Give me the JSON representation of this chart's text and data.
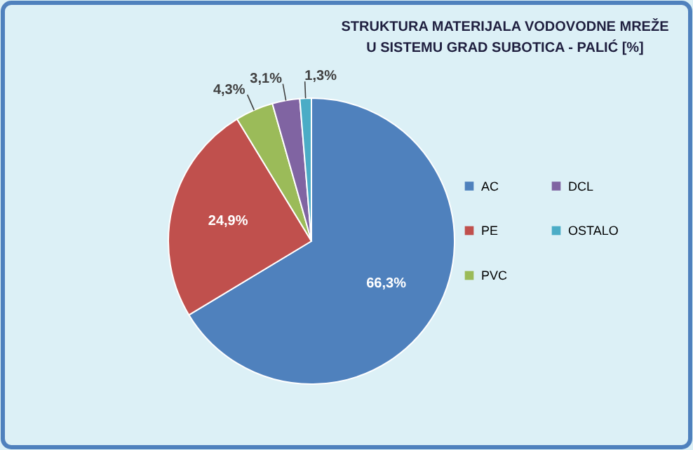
{
  "chart_data": {
    "type": "pie",
    "title": "STRUKTURA MATERIJALA VODOVODNE MREŽE U SISTEMU GRAD SUBOTICA - PALIĆ [%]",
    "categories": [
      "AC",
      "PE",
      "PVC",
      "DCL",
      "OSTALO"
    ],
    "values": [
      66.3,
      24.9,
      4.3,
      3.1,
      1.3
    ],
    "colors": [
      "#4f81bd",
      "#c0504d",
      "#9bbb59",
      "#8064a2",
      "#4bacc6"
    ],
    "value_labels": [
      "66,3%",
      "24,9%",
      "4,3%",
      "3,1%",
      "1,3%"
    ],
    "legend": "right"
  }
}
